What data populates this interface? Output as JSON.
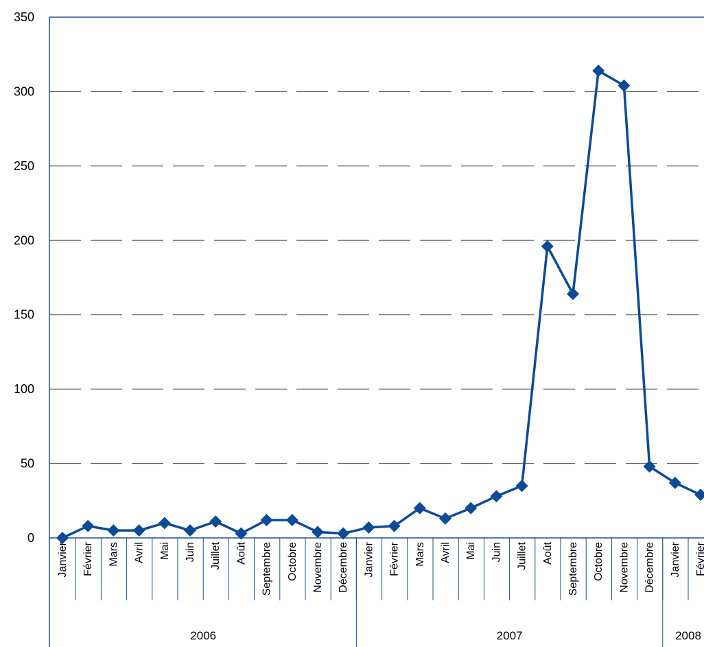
{
  "chart_data": {
    "type": "line",
    "title": "",
    "xlabel": "",
    "ylabel": "",
    "ylim": [
      0,
      350
    ],
    "yticks": [
      0,
      50,
      100,
      150,
      200,
      250,
      300,
      350
    ],
    "grid": "horizontal-dashed",
    "legend": "none",
    "months": [
      "Janvier",
      "Février",
      "Mars",
      "Avril",
      "Mai",
      "Juin",
      "Juillet",
      "Août",
      "Septembre",
      "Octobre",
      "Novembre",
      "Décembre",
      "Janvier",
      "Février",
      "Mars",
      "Avril",
      "Mai",
      "Juin",
      "Juillet",
      "Août",
      "Septembre",
      "Octobre",
      "Novembre",
      "Décembre",
      "Janvier",
      "Février"
    ],
    "years": [
      {
        "label": "2006",
        "count": 12
      },
      {
        "label": "2007",
        "count": 12
      },
      {
        "label": "2008",
        "count": 2
      }
    ],
    "series": [
      {
        "values": [
          0,
          8,
          5,
          5,
          10,
          5,
          11,
          3,
          12,
          12,
          4,
          3,
          7,
          8,
          20,
          13,
          20,
          28,
          35,
          196,
          164,
          314,
          304,
          48,
          37,
          29
        ]
      }
    ],
    "colors": {
      "line": "#0d4a96",
      "axis": "#1f4e8c",
      "grid": "#555555"
    }
  }
}
